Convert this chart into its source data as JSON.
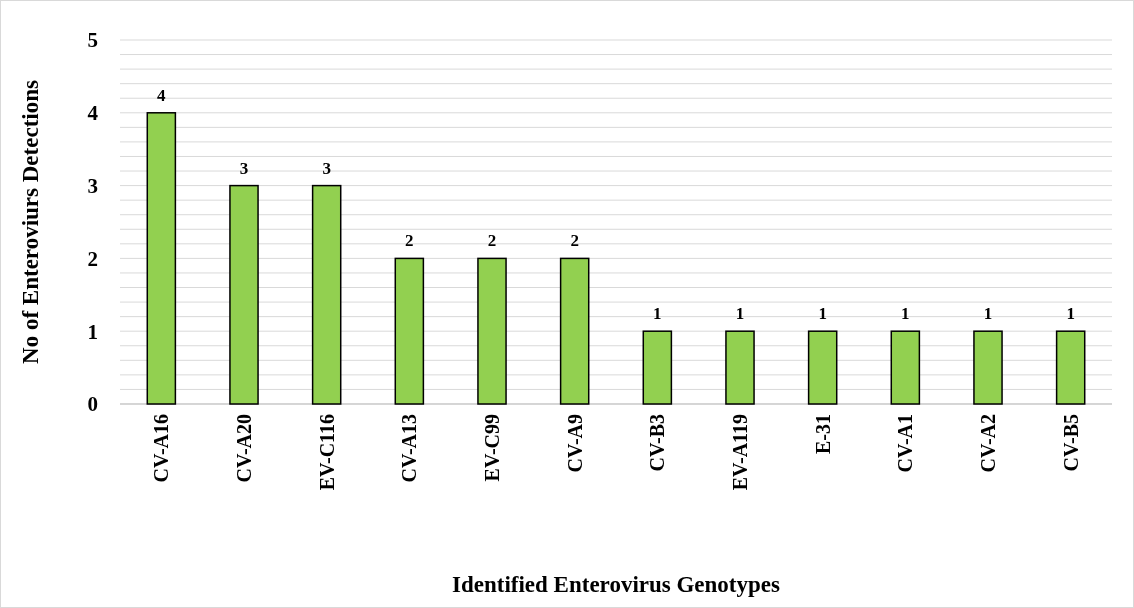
{
  "chart_data": {
    "type": "bar",
    "xlabel": "Identified Enterovirus Genotypes",
    "ylabel": "No of Enteroviurs Detections",
    "categories": [
      "CV-A16",
      "CV-A20",
      "EV-C116",
      "CV-A13",
      "EV-C99",
      "CV-A9",
      "CV-B3",
      "EV-A119",
      "E-31",
      "CV-A1",
      "CV-A2",
      "CV-B5"
    ],
    "values": [
      4,
      3,
      3,
      2,
      2,
      2,
      1,
      1,
      1,
      1,
      1,
      1
    ],
    "color": "#92d050",
    "ylim": [
      0,
      5
    ],
    "yticks": [
      0,
      {
        "value": 0.2,
        "label": null
      },
      {
        "value": 0.4,
        "label": null
      },
      {
        "value": 0.6,
        "label": null
      },
      {
        "value": 0.8,
        "label": null
      },
      1,
      {
        "value": 1.2,
        "label": null
      },
      {
        "value": 1.4,
        "label": null
      },
      {
        "value": 1.6,
        "label": null
      },
      {
        "value": 1.8,
        "label": null
      },
      2,
      {
        "value": 2.2,
        "label": null
      },
      {
        "value": 2.4,
        "label": null
      },
      {
        "value": 2.6,
        "label": null
      },
      {
        "value": 2.8,
        "label": null
      },
      3,
      {
        "value": 3.2,
        "label": null
      },
      {
        "value": 3.4,
        "label": null
      },
      {
        "value": 3.6,
        "label": null
      },
      {
        "value": 3.8,
        "label": null
      },
      4,
      {
        "value": 4.2,
        "label": null
      },
      {
        "value": 4.4,
        "label": null
      },
      {
        "value": 4.6,
        "label": null
      },
      {
        "value": 4.8,
        "label": null
      },
      5
    ],
    "grid": "y",
    "data_labels": true
  }
}
